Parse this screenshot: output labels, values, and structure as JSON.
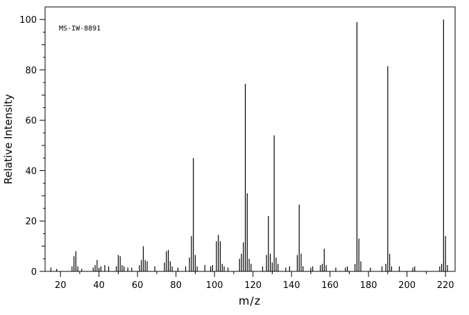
{
  "watermark": "MS-IW-8891",
  "chart_data": {
    "type": "bar",
    "title": "",
    "xlabel": "m/z",
    "ylabel": "Relative Intensity",
    "xlim": [
      12,
      225
    ],
    "ylim": [
      0,
      105
    ],
    "grid": false,
    "legend": "none",
    "x_major_tick_step": 20,
    "x_minor_tick_step": 10,
    "x_major_ticks": [
      20,
      40,
      60,
      80,
      100,
      120,
      140,
      160,
      180,
      200,
      220
    ],
    "y_major_ticks": [
      0,
      20,
      40,
      60,
      80,
      100
    ],
    "y_minor_tick_step": 5,
    "peaks": [
      [
        15,
        1.5
      ],
      [
        18,
        1
      ],
      [
        26,
        2
      ],
      [
        27,
        6
      ],
      [
        28,
        8
      ],
      [
        29,
        2
      ],
      [
        31,
        1
      ],
      [
        37,
        1.5
      ],
      [
        38,
        2.5
      ],
      [
        39,
        4.5
      ],
      [
        40,
        1.5
      ],
      [
        41,
        2
      ],
      [
        43,
        2.5
      ],
      [
        45,
        2
      ],
      [
        49,
        2
      ],
      [
        50,
        6.5
      ],
      [
        51,
        6
      ],
      [
        52,
        2.5
      ],
      [
        53,
        2
      ],
      [
        55,
        1.5
      ],
      [
        57,
        1.5
      ],
      [
        61,
        2.5
      ],
      [
        62,
        4.5
      ],
      [
        63,
        10
      ],
      [
        64,
        4.5
      ],
      [
        65,
        4
      ],
      [
        69,
        2
      ],
      [
        74,
        3.5
      ],
      [
        75,
        8
      ],
      [
        76,
        8.5
      ],
      [
        77,
        4
      ],
      [
        78,
        2
      ],
      [
        81,
        1.5
      ],
      [
        85,
        2
      ],
      [
        87,
        5.5
      ],
      [
        88,
        14
      ],
      [
        89,
        45
      ],
      [
        90,
        6.5
      ],
      [
        91,
        2
      ],
      [
        95,
        2.5
      ],
      [
        98,
        2
      ],
      [
        99,
        2.5
      ],
      [
        101,
        12
      ],
      [
        102,
        14.5
      ],
      [
        103,
        12
      ],
      [
        104,
        3
      ],
      [
        105,
        2
      ],
      [
        107,
        1.5
      ],
      [
        113,
        5
      ],
      [
        114,
        7
      ],
      [
        115,
        11.5
      ],
      [
        116,
        74.5
      ],
      [
        117,
        31
      ],
      [
        118,
        5
      ],
      [
        119,
        3
      ],
      [
        125,
        2
      ],
      [
        127,
        6.5
      ],
      [
        128,
        22
      ],
      [
        129,
        7
      ],
      [
        130,
        3.5
      ],
      [
        131,
        54
      ],
      [
        132,
        5.5
      ],
      [
        133,
        3
      ],
      [
        137,
        1.5
      ],
      [
        139,
        2
      ],
      [
        143,
        6.5
      ],
      [
        144,
        26.5
      ],
      [
        145,
        7
      ],
      [
        146,
        2
      ],
      [
        150,
        1.5
      ],
      [
        151,
        2
      ],
      [
        155,
        2.5
      ],
      [
        156,
        3
      ],
      [
        157,
        9
      ],
      [
        158,
        2.5
      ],
      [
        163,
        1.5
      ],
      [
        168,
        1.5
      ],
      [
        169,
        2
      ],
      [
        173,
        3
      ],
      [
        174,
        99
      ],
      [
        175,
        13
      ],
      [
        176,
        4
      ],
      [
        181,
        1.5
      ],
      [
        187,
        2
      ],
      [
        189,
        3
      ],
      [
        190,
        81.5
      ],
      [
        191,
        7
      ],
      [
        192,
        2
      ],
      [
        196,
        2
      ],
      [
        203,
        1.5
      ],
      [
        204,
        2
      ],
      [
        217,
        2
      ],
      [
        218,
        3
      ],
      [
        219,
        100
      ],
      [
        220,
        14
      ],
      [
        221,
        2.5
      ]
    ],
    "colors": {
      "peak": "#000000",
      "frame": "#000000",
      "background": "#ffffff"
    }
  }
}
